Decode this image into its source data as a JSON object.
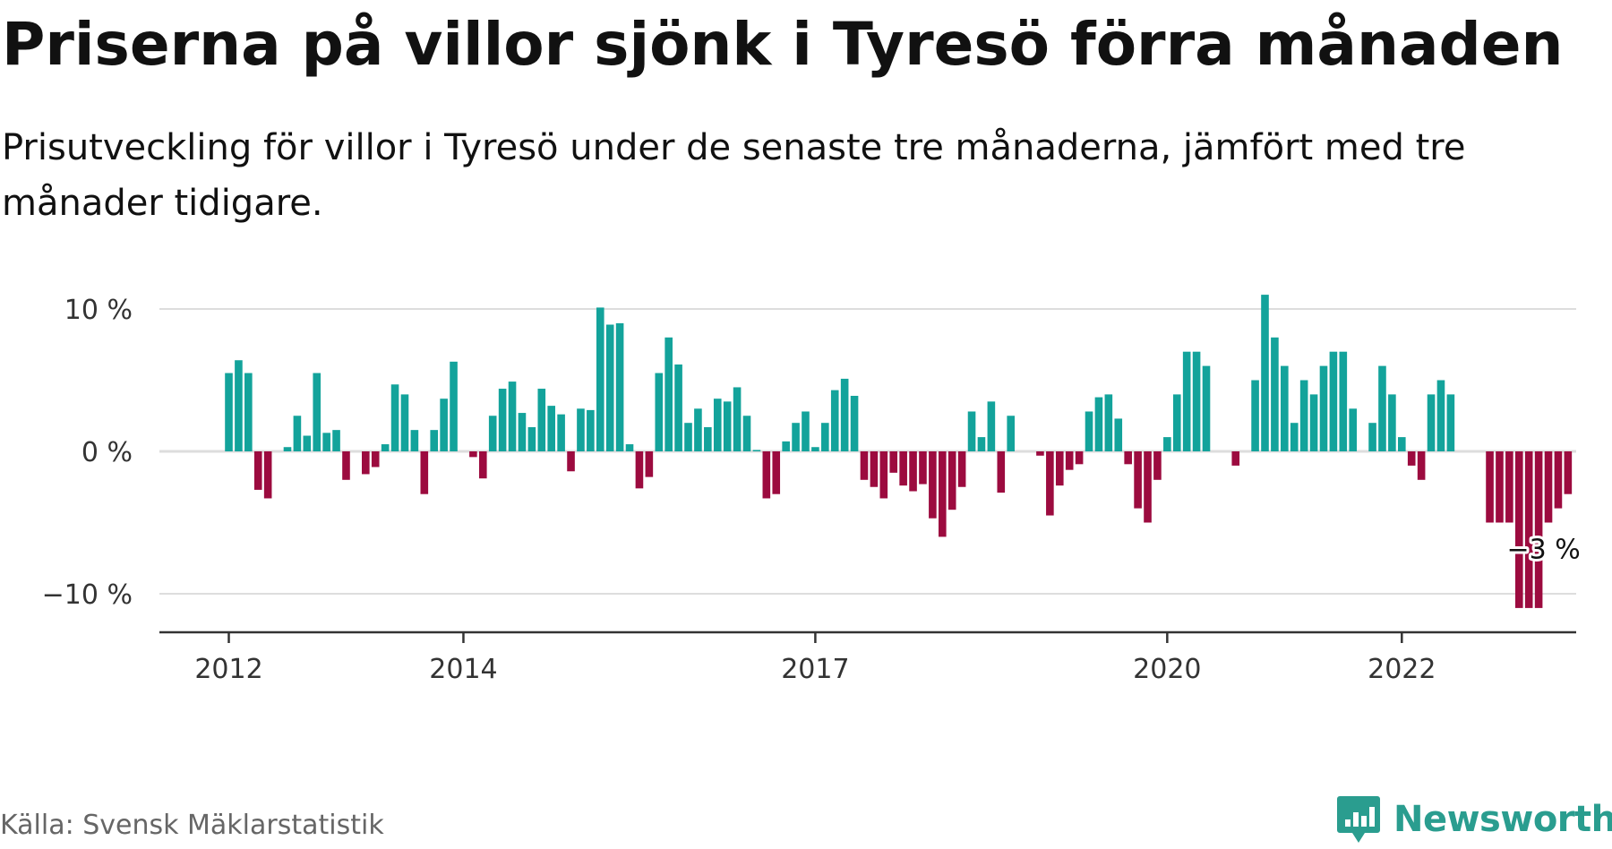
{
  "header": {
    "title": "Priserna på villor sjönk i Tyresö förra månaden",
    "subtitle": "Prisutveckling för villor i Tyresö under de senaste tre månaderna, jämfört med tre månader tidigare."
  },
  "footer": {
    "source": "Källa: Svensk Mäklarstatistik",
    "brand": "Newsworthy"
  },
  "colors": {
    "positive": "#13a39b",
    "negative": "#9c0b3f",
    "grid": "#dddddd",
    "axis": "#333333",
    "brand": "#2a9d8f"
  },
  "chart_data": {
    "type": "bar",
    "title": "Priserna på villor sjönk i Tyresö förra månaden",
    "subtitle": "Prisutveckling för villor i Tyresö under de senaste tre månaderna, jämfört med tre månader tidigare.",
    "xlabel": "",
    "ylabel": "",
    "unit": "%",
    "ylim": [
      -12.5,
      10
    ],
    "yticks": [
      {
        "value": 10,
        "label": "10 %"
      },
      {
        "value": 0,
        "label": "0 %"
      },
      {
        "value": -10,
        "label": "−10 %"
      }
    ],
    "xticks": [
      {
        "value": "2012-01",
        "label": "2012"
      },
      {
        "value": "2014-01",
        "label": "2014"
      },
      {
        "value": "2017-01",
        "label": "2017"
      },
      {
        "value": "2020-01",
        "label": "2020"
      },
      {
        "value": "2022-01",
        "label": "2022"
      }
    ],
    "x_start": "2012-01",
    "grid": true,
    "annotation": {
      "label": "−3 %",
      "x": "2022-11"
    },
    "values": [
      5.5,
      6.4,
      5.5,
      -2.7,
      -3.3,
      0,
      0.3,
      2.5,
      1.1,
      5.5,
      1.3,
      1.5,
      -2.0,
      0,
      -1.6,
      -1.1,
      0.5,
      4.7,
      4.0,
      1.5,
      -3.0,
      1.5,
      3.7,
      6.3,
      0,
      -0.4,
      -1.9,
      2.5,
      4.4,
      4.9,
      2.7,
      1.7,
      4.4,
      3.2,
      2.6,
      -1.4,
      3.0,
      2.9,
      10.1,
      8.9,
      9.0,
      0.5,
      -2.6,
      -1.8,
      5.5,
      8.0,
      6.1,
      2.0,
      3.0,
      1.7,
      3.7,
      3.5,
      4.5,
      2.5,
      0.1,
      -3.3,
      -3.0,
      0.7,
      2.0,
      2.8,
      0.3,
      2.0,
      4.3,
      5.1,
      3.9,
      -2.0,
      -2.5,
      -3.3,
      -1.5,
      -2.4,
      -2.8,
      -2.3,
      -4.7,
      -6.0,
      -4.1,
      -2.5,
      2.8,
      1.0,
      3.5,
      -2.9,
      2.5,
      0,
      0,
      -0.3,
      -4.5,
      -2.4,
      -1.3,
      -0.9,
      2.8,
      3.8,
      4.0,
      2.3,
      -0.9,
      -4.0,
      -5.0,
      -2.0,
      1.0,
      4.0,
      7.0,
      7.0,
      6.0,
      0,
      0,
      -1.0,
      0,
      5.0,
      11.0,
      8.0,
      6.0,
      2.0,
      5.0,
      4.0,
      6.0,
      7.0,
      7.0,
      3.0,
      0,
      2.0,
      6.0,
      4.0,
      1.0,
      -1.0,
      -2.0,
      4.0,
      5.0,
      4.0,
      0,
      0,
      0,
      -5.0,
      -5.0,
      -5.0,
      -11.0,
      -11.0,
      -11.0,
      -5.0,
      -4.0,
      -3.0
    ]
  }
}
